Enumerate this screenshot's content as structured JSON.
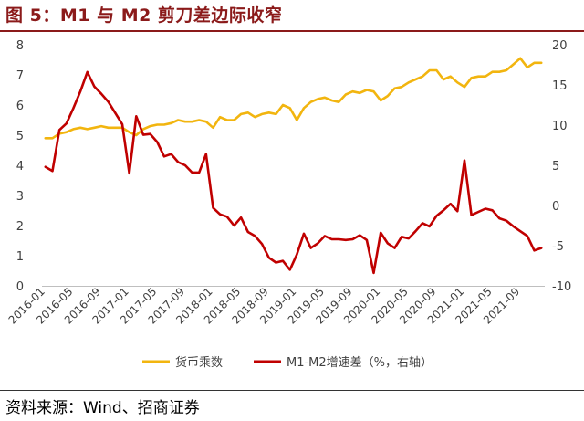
{
  "title": "图 5：M1 与 M2 剪刀差边际收窄",
  "source": "资料来源：Wind、招商证券",
  "colors": {
    "brand": "#8b1a1a",
    "money_multiplier": "#f2b50f",
    "spread": "#c00000",
    "axis_text": "#404040"
  },
  "chart_data": {
    "type": "line",
    "title": "",
    "x_tick_labels": [
      "2016-01",
      "2016-05",
      "2016-09",
      "2017-01",
      "2017-05",
      "2017-09",
      "2018-01",
      "2018-05",
      "2018-09",
      "2019-01",
      "2019-05",
      "2019-09",
      "2020-01",
      "2020-05",
      "2020-09",
      "2021-01",
      "2021-05",
      "2021-09"
    ],
    "y_left": {
      "ticks": [
        "0",
        "1",
        "2",
        "3",
        "4",
        "5",
        "6",
        "7",
        "8"
      ],
      "ylim": [
        0,
        8
      ]
    },
    "y_right": {
      "ticks": [
        "-10",
        "-5",
        "0",
        "5",
        "10",
        "15",
        "20"
      ],
      "ylim": [
        -10,
        20
      ]
    },
    "grid": false,
    "legend_position": "bottom",
    "series": [
      {
        "name": "货币乘数",
        "axis": "left",
        "color": "#f2b50f",
        "values": [
          4.9,
          4.9,
          5.05,
          5.1,
          5.2,
          5.25,
          5.2,
          5.25,
          5.3,
          5.25,
          5.25,
          5.25,
          5.1,
          5.0,
          5.2,
          5.3,
          5.35,
          5.35,
          5.4,
          5.5,
          5.45,
          5.45,
          5.5,
          5.45,
          5.25,
          5.6,
          5.5,
          5.5,
          5.7,
          5.75,
          5.6,
          5.7,
          5.75,
          5.7,
          6.0,
          5.9,
          5.5,
          5.9,
          6.1,
          6.2,
          6.25,
          6.15,
          6.1,
          6.35,
          6.45,
          6.4,
          6.5,
          6.45,
          6.15,
          6.3,
          6.55,
          6.6,
          6.75,
          6.85,
          6.95,
          7.15,
          7.15,
          6.85,
          6.95,
          6.75,
          6.6,
          6.9,
          6.95,
          6.95,
          7.1,
          7.1,
          7.15,
          7.35,
          7.55,
          7.25,
          7.4,
          7.4
        ]
      },
      {
        "name": "M1-M2增速差（%，右轴）",
        "axis": "right",
        "color": "#c00000",
        "values": [
          4.8,
          4.3,
          9.4,
          10.2,
          12.1,
          14.2,
          16.6,
          14.8,
          13.9,
          12.9,
          11.5,
          10.1,
          4.0,
          11.1,
          8.8,
          8.9,
          7.9,
          6.1,
          6.4,
          5.4,
          5.0,
          4.1,
          4.1,
          6.4,
          -0.3,
          -1.1,
          -1.4,
          -2.5,
          -1.5,
          -3.3,
          -3.8,
          -4.8,
          -6.5,
          -7.1,
          -6.9,
          -8.0,
          -6.1,
          -3.5,
          -5.3,
          -4.7,
          -3.8,
          -4.2,
          -4.2,
          -4.3,
          -4.2,
          -3.7,
          -4.3,
          -8.4,
          -3.4,
          -4.7,
          -5.3,
          -3.9,
          -4.1,
          -3.2,
          -2.2,
          -2.6,
          -1.3,
          -0.6,
          0.2,
          -0.7,
          5.6,
          -1.2,
          -0.8,
          -0.4,
          -0.6,
          -1.6,
          -1.9,
          -2.6,
          -3.2,
          -3.8,
          -5.6,
          -5.3
        ]
      }
    ]
  }
}
